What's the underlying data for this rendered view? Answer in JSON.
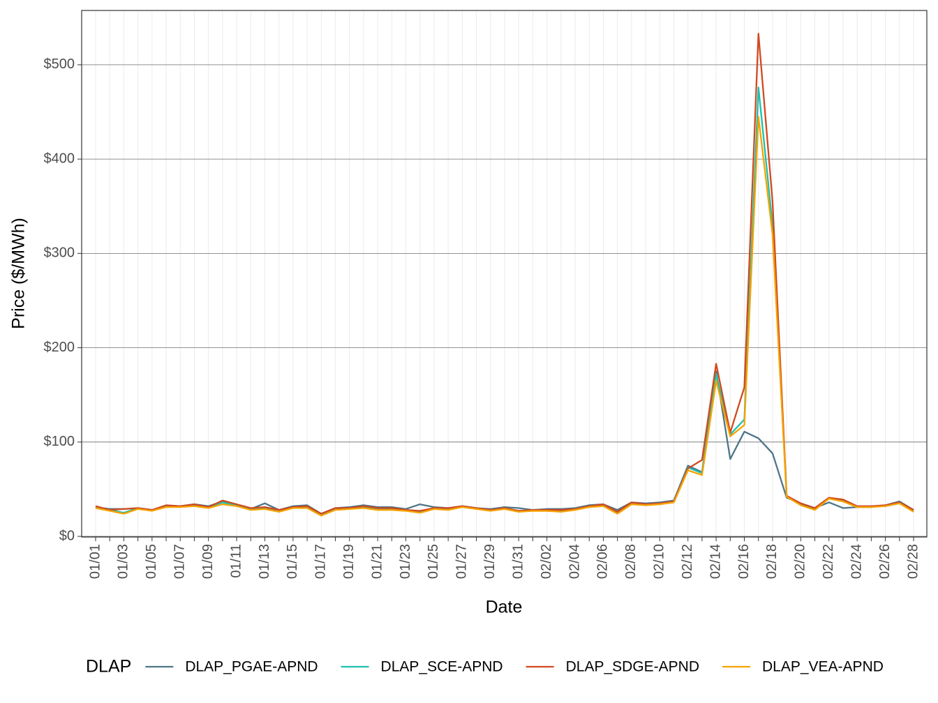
{
  "chart_data": {
    "type": "line",
    "x_label": "Date",
    "y_label": "Price ($/MWh)",
    "legend_title": "DLAP",
    "legend_position": "bottom",
    "categories": [
      "01/01",
      null,
      "01/03",
      null,
      "01/05",
      null,
      "01/07",
      null,
      "01/09",
      null,
      "01/11",
      null,
      "01/13",
      null,
      "01/15",
      null,
      "01/17",
      null,
      "01/19",
      null,
      "01/21",
      null,
      "01/23",
      null,
      "01/25",
      null,
      "01/27",
      null,
      "01/29",
      null,
      "01/31",
      null,
      "02/02",
      null,
      "02/04",
      null,
      "02/06",
      null,
      "02/08",
      null,
      "02/10",
      null,
      "02/12",
      null,
      "02/14",
      null,
      "02/16",
      null,
      "02/18",
      null,
      "02/20",
      null,
      "02/22",
      null,
      "02/24",
      null,
      "02/26",
      null,
      "02/28"
    ],
    "ylim": [
      -0.7,
      557.6
    ],
    "yticks": [
      {
        "value": 0,
        "label": "$0"
      },
      {
        "value": 100,
        "label": "$100"
      },
      {
        "value": 200,
        "label": "$200"
      },
      {
        "value": 300,
        "label": "$300"
      },
      {
        "value": 400,
        "label": "$400"
      },
      {
        "value": 500,
        "label": "$500"
      }
    ],
    "grid": true,
    "series": [
      {
        "name": "DLAP_PGAE-APND",
        "color": "#4e7588",
        "values": [
          31,
          29,
          29,
          30,
          28,
          32,
          32,
          34,
          32,
          37,
          33,
          29,
          35,
          28,
          32,
          33,
          24,
          30,
          31,
          33,
          31,
          31,
          29,
          34,
          31,
          30,
          32,
          30,
          29,
          31,
          30,
          28,
          29,
          29,
          30,
          33,
          34,
          28,
          36,
          35,
          36,
          38,
          75,
          68,
          175,
          82,
          111,
          104,
          88,
          41,
          35,
          30,
          36,
          30,
          31,
          31,
          33,
          37,
          28
        ]
      },
      {
        "name": "DLAP_SCE-APND",
        "color": "#1ebfae",
        "values": [
          31,
          28,
          25,
          30,
          28,
          32,
          32,
          33,
          31,
          36,
          33,
          29,
          30,
          28,
          30,
          31,
          23,
          29,
          30,
          31,
          29,
          29,
          28,
          26,
          30,
          29,
          32,
          30,
          28,
          30,
          27,
          28,
          28,
          27,
          29,
          31,
          33,
          25,
          35,
          34,
          35,
          37,
          73,
          67,
          172,
          108,
          124,
          476,
          330,
          42,
          34,
          29,
          40,
          38,
          31,
          32,
          32,
          35,
          27
        ]
      },
      {
        "name": "DLAP_SDGE-APND",
        "color": "#d2491e",
        "values": [
          32,
          28,
          29,
          30,
          28,
          33,
          32,
          34,
          31,
          38,
          34,
          30,
          31,
          28,
          31,
          32,
          24,
          30,
          30,
          32,
          30,
          30,
          28,
          27,
          30,
          30,
          32,
          30,
          28,
          30,
          27,
          28,
          28,
          28,
          29,
          32,
          34,
          26,
          36,
          34,
          35,
          37,
          72,
          81,
          183,
          110,
          158,
          533,
          355,
          43,
          35,
          30,
          41,
          39,
          32,
          32,
          33,
          36,
          28
        ]
      },
      {
        "name": "DLAP_VEA-APND",
        "color": "#f5a300",
        "values": [
          30,
          27,
          24,
          29,
          27,
          31,
          31,
          32,
          30,
          34,
          32,
          28,
          29,
          26,
          30,
          30,
          22,
          28,
          29,
          30,
          28,
          28,
          27,
          25,
          29,
          28,
          31,
          29,
          27,
          29,
          26,
          27,
          27,
          26,
          28,
          31,
          32,
          24,
          34,
          33,
          34,
          36,
          70,
          65,
          165,
          106,
          118,
          445,
          320,
          42,
          33,
          28,
          40,
          37,
          31,
          31,
          32,
          35,
          26
        ]
      }
    ]
  }
}
